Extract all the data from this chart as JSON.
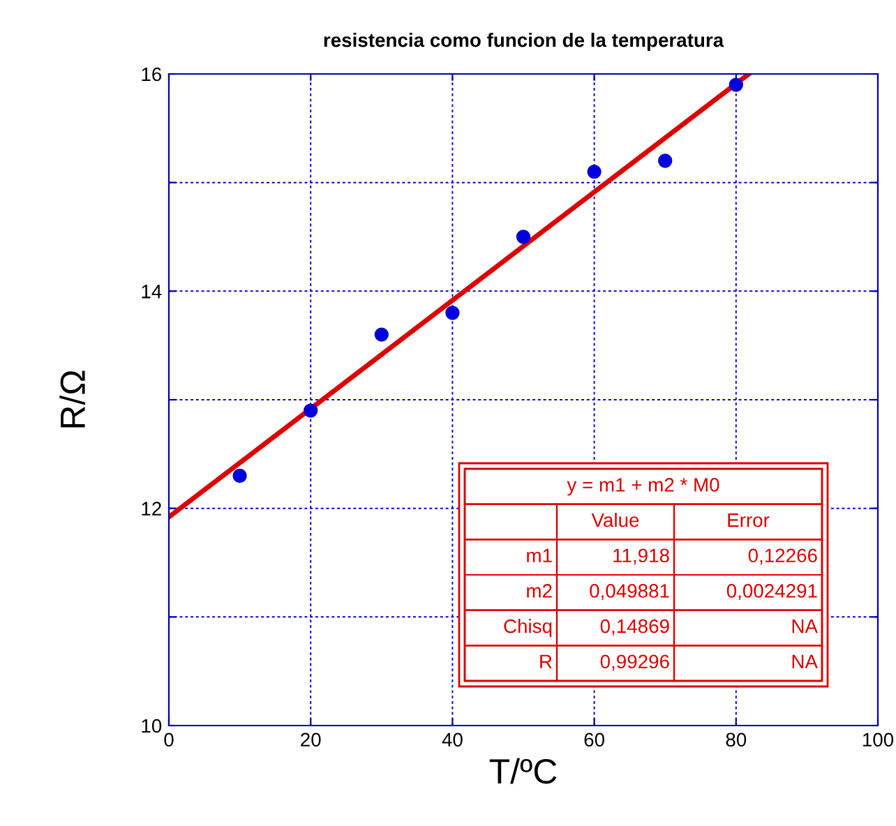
{
  "chart_data": {
    "type": "scatter",
    "title": "resistencia como funcion de la temperatura",
    "xlabel": "T/ºC",
    "ylabel": "R/Ω",
    "x": [
      10,
      20,
      30,
      40,
      50,
      60,
      70,
      80
    ],
    "series": [
      {
        "color": "#0000dd",
        "values": [
          12.3,
          12.9,
          13.6,
          13.8,
          14.5,
          15.1,
          15.2,
          15.9
        ],
        "marker": "circle"
      },
      {
        "type": "line",
        "color": "#dd0000",
        "x": [
          0,
          81.8
        ],
        "values": [
          11.92,
          16.0
        ],
        "line_style": "solid"
      }
    ],
    "xlim": [
      0,
      100
    ],
    "ylim": [
      10,
      16
    ],
    "xticks": [
      0,
      20,
      40,
      60,
      80,
      100
    ],
    "yticks": [
      10,
      {
        "value": 11,
        "label": null
      },
      12,
      {
        "value": 13,
        "label": null
      },
      14,
      {
        "value": 15,
        "label": null
      },
      16
    ],
    "grid": true,
    "annotations": [
      "y = m1 + m2 * M0",
      "Value",
      "Error",
      "m1",
      "11,918",
      "0,12266",
      "m2",
      "0,049881",
      "0,0024291",
      "Chisq",
      "0,14869",
      "NA",
      "R",
      "0,99296",
      "NA"
    ]
  }
}
